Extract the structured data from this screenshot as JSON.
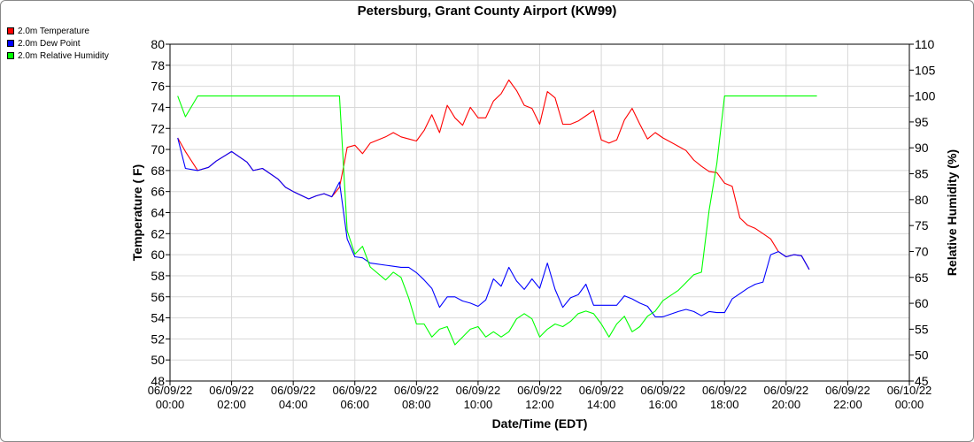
{
  "chart_data": {
    "type": "line",
    "title": "Petersburg, Grant County Airport (KW99)",
    "xlabel": "Date/Time (EDT)",
    "ylabel_left": "Temperature ( F)",
    "ylabel_right": "Relative Humidity (%)",
    "x_ticks": [
      {
        "date": "06/09/22",
        "time": "00:00",
        "hour": 0
      },
      {
        "date": "06/09/22",
        "time": "02:00",
        "hour": 2
      },
      {
        "date": "06/09/22",
        "time": "04:00",
        "hour": 4
      },
      {
        "date": "06/09/22",
        "time": "06:00",
        "hour": 6
      },
      {
        "date": "06/09/22",
        "time": "08:00",
        "hour": 8
      },
      {
        "date": "06/09/22",
        "time": "10:00",
        "hour": 10
      },
      {
        "date": "06/09/22",
        "time": "12:00",
        "hour": 12
      },
      {
        "date": "06/09/22",
        "time": "14:00",
        "hour": 14
      },
      {
        "date": "06/09/22",
        "time": "16:00",
        "hour": 16
      },
      {
        "date": "06/09/22",
        "time": "18:00",
        "hour": 18
      },
      {
        "date": "06/09/22",
        "time": "20:00",
        "hour": 20
      },
      {
        "date": "06/09/22",
        "time": "22:00",
        "hour": 22
      },
      {
        "date": "06/10/22",
        "time": "00:00",
        "hour": 24
      }
    ],
    "xlim": [
      0,
      24
    ],
    "ylim_left": [
      48,
      80
    ],
    "ylim_right": [
      45,
      110
    ],
    "left_ticks": [
      48,
      50,
      52,
      54,
      56,
      58,
      60,
      62,
      64,
      66,
      68,
      70,
      72,
      74,
      76,
      78,
      80
    ],
    "right_ticks": [
      45,
      50,
      55,
      60,
      65,
      70,
      75,
      80,
      85,
      90,
      95,
      100,
      105,
      110
    ],
    "grid": true,
    "legend_position": "top-left",
    "series": [
      {
        "name": "2.0m Temperature",
        "color": "#ff0000",
        "axis": "left",
        "points": [
          [
            0.25,
            71.1
          ],
          [
            0.5,
            69.8
          ],
          [
            0.9,
            68.0
          ],
          [
            1.25,
            68.3
          ],
          [
            1.5,
            68.9
          ],
          [
            2.0,
            69.8
          ],
          [
            2.5,
            68.8
          ],
          [
            2.7,
            68.0
          ],
          [
            3.0,
            68.2
          ],
          [
            3.5,
            67.2
          ],
          [
            3.75,
            66.4
          ],
          [
            4.0,
            66.0
          ],
          [
            4.5,
            65.3
          ],
          [
            4.75,
            65.6
          ],
          [
            5.0,
            65.8
          ],
          [
            5.25,
            65.5
          ],
          [
            5.5,
            66.4
          ],
          [
            5.65,
            68.6
          ],
          [
            5.75,
            70.2
          ],
          [
            6.0,
            70.4
          ],
          [
            6.25,
            69.6
          ],
          [
            6.5,
            70.6
          ],
          [
            7.0,
            71.2
          ],
          [
            7.25,
            71.6
          ],
          [
            7.5,
            71.2
          ],
          [
            7.75,
            71.0
          ],
          [
            8.0,
            70.8
          ],
          [
            8.25,
            71.8
          ],
          [
            8.5,
            73.3
          ],
          [
            8.75,
            71.6
          ],
          [
            9.0,
            74.2
          ],
          [
            9.25,
            73.0
          ],
          [
            9.5,
            72.3
          ],
          [
            9.75,
            74.0
          ],
          [
            10.0,
            73.0
          ],
          [
            10.25,
            73.0
          ],
          [
            10.5,
            74.6
          ],
          [
            10.75,
            75.3
          ],
          [
            11.0,
            76.6
          ],
          [
            11.25,
            75.6
          ],
          [
            11.5,
            74.2
          ],
          [
            11.75,
            73.9
          ],
          [
            12.0,
            72.4
          ],
          [
            12.25,
            75.5
          ],
          [
            12.5,
            74.9
          ],
          [
            12.75,
            72.4
          ],
          [
            13.0,
            72.4
          ],
          [
            13.25,
            72.7
          ],
          [
            13.5,
            73.2
          ],
          [
            13.75,
            73.7
          ],
          [
            14.0,
            70.9
          ],
          [
            14.25,
            70.6
          ],
          [
            14.5,
            70.9
          ],
          [
            14.75,
            72.8
          ],
          [
            15.0,
            73.9
          ],
          [
            15.25,
            72.4
          ],
          [
            15.5,
            71.0
          ],
          [
            15.75,
            71.6
          ],
          [
            16.0,
            71.1
          ],
          [
            16.5,
            70.3
          ],
          [
            16.75,
            69.9
          ],
          [
            17.0,
            69.0
          ],
          [
            17.25,
            68.4
          ],
          [
            17.5,
            67.9
          ],
          [
            17.75,
            67.8
          ],
          [
            18.0,
            66.8
          ],
          [
            18.25,
            66.5
          ],
          [
            18.5,
            63.5
          ],
          [
            18.75,
            62.8
          ],
          [
            19.0,
            62.5
          ],
          [
            19.25,
            62.0
          ],
          [
            19.5,
            61.5
          ],
          [
            19.75,
            60.3
          ],
          [
            20.0,
            59.8
          ],
          [
            20.25,
            60.0
          ],
          [
            20.5,
            59.9
          ],
          [
            20.75,
            58.6
          ]
        ]
      },
      {
        "name": "2.0m Dew Point",
        "color": "#0000ff",
        "axis": "left",
        "points": [
          [
            0.25,
            71.1
          ],
          [
            0.5,
            68.2
          ],
          [
            0.9,
            68.0
          ],
          [
            1.25,
            68.3
          ],
          [
            1.5,
            68.9
          ],
          [
            2.0,
            69.8
          ],
          [
            2.5,
            68.8
          ],
          [
            2.7,
            68.0
          ],
          [
            3.0,
            68.2
          ],
          [
            3.5,
            67.2
          ],
          [
            3.75,
            66.4
          ],
          [
            4.0,
            66.0
          ],
          [
            4.5,
            65.3
          ],
          [
            4.75,
            65.6
          ],
          [
            5.0,
            65.8
          ],
          [
            5.25,
            65.5
          ],
          [
            5.5,
            66.9
          ],
          [
            5.75,
            61.5
          ],
          [
            6.0,
            59.8
          ],
          [
            6.25,
            59.7
          ],
          [
            6.5,
            59.2
          ],
          [
            7.0,
            59.0
          ],
          [
            7.25,
            58.9
          ],
          [
            7.5,
            58.8
          ],
          [
            7.75,
            58.8
          ],
          [
            8.0,
            58.3
          ],
          [
            8.25,
            57.6
          ],
          [
            8.5,
            56.8
          ],
          [
            8.75,
            55.0
          ],
          [
            9.0,
            56.0
          ],
          [
            9.25,
            56.0
          ],
          [
            9.5,
            55.6
          ],
          [
            9.75,
            55.4
          ],
          [
            10.0,
            55.1
          ],
          [
            10.25,
            55.7
          ],
          [
            10.5,
            57.7
          ],
          [
            10.75,
            57.0
          ],
          [
            11.0,
            58.8
          ],
          [
            11.25,
            57.5
          ],
          [
            11.5,
            56.7
          ],
          [
            11.75,
            57.7
          ],
          [
            12.0,
            56.8
          ],
          [
            12.25,
            59.2
          ],
          [
            12.5,
            56.7
          ],
          [
            12.75,
            55.0
          ],
          [
            13.0,
            55.9
          ],
          [
            13.25,
            56.2
          ],
          [
            13.5,
            57.2
          ],
          [
            13.75,
            55.2
          ],
          [
            14.0,
            55.2
          ],
          [
            14.25,
            55.2
          ],
          [
            14.5,
            55.2
          ],
          [
            14.75,
            56.1
          ],
          [
            15.0,
            55.8
          ],
          [
            15.25,
            55.4
          ],
          [
            15.5,
            55.1
          ],
          [
            15.75,
            54.1
          ],
          [
            16.0,
            54.1
          ],
          [
            16.5,
            54.6
          ],
          [
            16.75,
            54.8
          ],
          [
            17.0,
            54.6
          ],
          [
            17.25,
            54.2
          ],
          [
            17.5,
            54.6
          ],
          [
            17.75,
            54.5
          ],
          [
            18.0,
            54.5
          ],
          [
            18.25,
            55.8
          ],
          [
            18.5,
            56.3
          ],
          [
            18.75,
            56.8
          ],
          [
            19.0,
            57.2
          ],
          [
            19.25,
            57.4
          ],
          [
            19.5,
            60.0
          ],
          [
            19.75,
            60.3
          ],
          [
            20.0,
            59.8
          ],
          [
            20.25,
            60.0
          ],
          [
            20.5,
            59.9
          ],
          [
            20.75,
            58.6
          ]
        ]
      },
      {
        "name": "2.0m Relative Humidity",
        "color": "#00ff00",
        "axis": "right",
        "points": [
          [
            0.25,
            100
          ],
          [
            0.5,
            96
          ],
          [
            0.9,
            100
          ],
          [
            5.5,
            100
          ],
          [
            5.75,
            74
          ],
          [
            6.0,
            69.5
          ],
          [
            6.25,
            71
          ],
          [
            6.5,
            67
          ],
          [
            7.0,
            64.5
          ],
          [
            7.25,
            66
          ],
          [
            7.5,
            65
          ],
          [
            7.75,
            61
          ],
          [
            8.0,
            56
          ],
          [
            8.25,
            56
          ],
          [
            8.5,
            53.5
          ],
          [
            8.75,
            55
          ],
          [
            9.0,
            55.5
          ],
          [
            9.25,
            52
          ],
          [
            9.5,
            53.5
          ],
          [
            9.75,
            55
          ],
          [
            10.0,
            55.5
          ],
          [
            10.25,
            53.5
          ],
          [
            10.5,
            54.5
          ],
          [
            10.75,
            53.5
          ],
          [
            11.0,
            54.5
          ],
          [
            11.25,
            57
          ],
          [
            11.5,
            58
          ],
          [
            11.75,
            57
          ],
          [
            12.0,
            53.5
          ],
          [
            12.25,
            55
          ],
          [
            12.5,
            56
          ],
          [
            12.75,
            55.5
          ],
          [
            13.0,
            56.5
          ],
          [
            13.25,
            58
          ],
          [
            13.5,
            58.5
          ],
          [
            13.75,
            58
          ],
          [
            14.0,
            56
          ],
          [
            14.25,
            53.5
          ],
          [
            14.5,
            56
          ],
          [
            14.75,
            57.5
          ],
          [
            15.0,
            54.5
          ],
          [
            15.25,
            55.5
          ],
          [
            15.5,
            57.5
          ],
          [
            15.75,
            58.5
          ],
          [
            16.0,
            60.5
          ],
          [
            16.5,
            62.5
          ],
          [
            16.75,
            64
          ],
          [
            17.0,
            65.5
          ],
          [
            17.25,
            66
          ],
          [
            17.5,
            78
          ],
          [
            17.75,
            87
          ],
          [
            18.0,
            100
          ],
          [
            21.0,
            100
          ]
        ]
      }
    ]
  }
}
